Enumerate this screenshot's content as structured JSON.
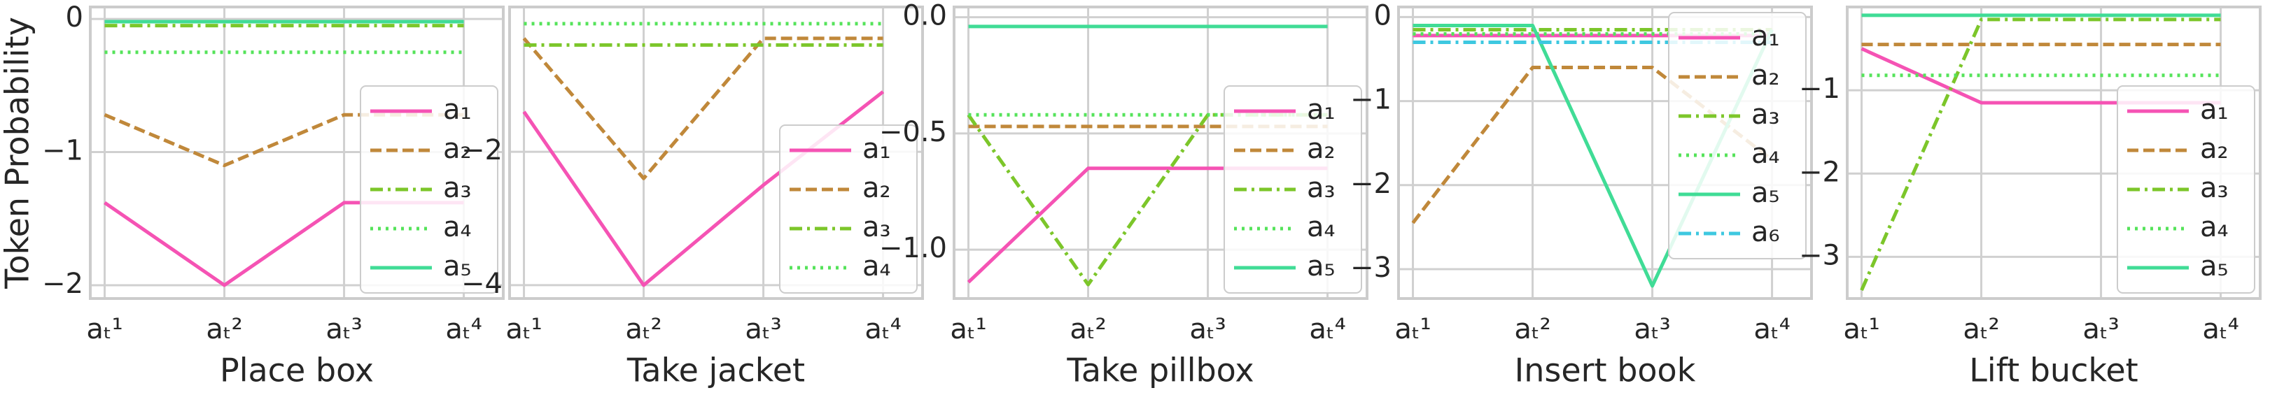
{
  "chart_data": [
    {
      "type": "line",
      "xlabel": "Place box",
      "ylabel": "Token Probability",
      "categories": [
        "aₜ¹",
        "aₜ²",
        "aₜ³",
        "aₜ⁴"
      ],
      "series": [
        {
          "name": "a₁",
          "color": "#f553b4",
          "linestyle": "solid",
          "values": [
            -1.38,
            -2.0,
            -1.38,
            -1.38
          ]
        },
        {
          "name": "a₂",
          "color": "#c0883a",
          "linestyle": "dashed",
          "values": [
            -0.72,
            -1.1,
            -0.72,
            -0.72
          ]
        },
        {
          "name": "a₃",
          "color": "#7cc62a",
          "linestyle": "dashdot",
          "values": [
            -0.05,
            -0.05,
            -0.05,
            -0.05
          ]
        },
        {
          "name": "a₄",
          "color": "#55e35a",
          "linestyle": "dotted",
          "values": [
            -0.25,
            -0.25,
            -0.25,
            -0.25
          ]
        },
        {
          "name": "a₅",
          "color": "#40dc96",
          "linestyle": "solid",
          "values": [
            -0.02,
            -0.02,
            -0.02,
            -0.02
          ]
        }
      ],
      "ylim": [
        -2.1,
        0.09
      ],
      "yticks": [
        0,
        {
          "value": -1,
          "label": "−1"
        },
        {
          "value": -2,
          "label": "−2"
        }
      ],
      "grid": true,
      "legend_loc": "lower right"
    },
    {
      "type": "line",
      "xlabel": "Take jacket",
      "categories": [
        "aₜ¹",
        "aₜ²",
        "aₜ³",
        "aₜ⁴"
      ],
      "series": [
        {
          "name": "a₁",
          "color": "#f553b4",
          "linestyle": "solid",
          "values": [
            -1.4,
            -4.0,
            -2.5,
            -1.1
          ]
        },
        {
          "name": "a₂",
          "color": "#c0883a",
          "linestyle": "dashed",
          "values": [
            -0.3,
            -2.4,
            -0.3,
            -0.3
          ]
        },
        {
          "name": "a₃",
          "color": "#7cc62a",
          "linestyle": "dashdot",
          "values": [
            -0.4,
            -0.4,
            -0.4,
            -0.4
          ]
        },
        {
          "name": "a₄",
          "color": "#55e35a",
          "linestyle": "dotted",
          "values": [
            -0.08,
            -0.08,
            -0.08,
            -0.08
          ]
        }
      ],
      "ylim": [
        -4.2,
        0.17
      ],
      "yticks": [
        {
          "value": -2,
          "label": "−2"
        },
        {
          "value": -4,
          "label": "−4"
        }
      ],
      "grid": true,
      "legend_loc": "lower right"
    },
    {
      "type": "line",
      "xlabel": "Take pillbox",
      "categories": [
        "aₜ¹",
        "aₜ²",
        "aₜ³",
        "aₜ⁴"
      ],
      "series": [
        {
          "name": "a₁",
          "color": "#f553b4",
          "linestyle": "solid",
          "values": [
            -1.14,
            -0.65,
            -0.65,
            -0.65
          ]
        },
        {
          "name": "a₂",
          "color": "#c0883a",
          "linestyle": "dashed",
          "values": [
            -0.47,
            -0.47,
            -0.47,
            -0.47
          ]
        },
        {
          "name": "a₃",
          "color": "#7cc62a",
          "linestyle": "dashdot",
          "values": [
            -0.42,
            -1.15,
            -0.42,
            -0.42
          ]
        },
        {
          "name": "a₄",
          "color": "#55e35a",
          "linestyle": "dotted",
          "values": [
            -0.42,
            -0.42,
            -0.42,
            -0.42
          ]
        },
        {
          "name": "a₅",
          "color": "#40dc96",
          "linestyle": "solid",
          "values": [
            -0.04,
            -0.04,
            -0.04,
            -0.04
          ]
        }
      ],
      "ylim": [
        -1.21,
        0.044
      ],
      "yticks": [
        {
          "value": 0,
          "label": "0.0"
        },
        {
          "value": -0.5,
          "label": "−0.5"
        },
        {
          "value": -1,
          "label": "−1.0"
        }
      ],
      "grid": true,
      "legend_loc": "lower right"
    },
    {
      "type": "line",
      "xlabel": "Insert book",
      "categories": [
        "aₜ¹",
        "aₜ²",
        "aₜ³",
        "aₜ⁴"
      ],
      "series": [
        {
          "name": "a₁",
          "color": "#f553b4",
          "linestyle": "solid",
          "values": [
            -0.22,
            -0.22,
            -0.22,
            -0.22
          ]
        },
        {
          "name": "a₂",
          "color": "#c0883a",
          "linestyle": "dashed",
          "values": [
            -2.45,
            -0.6,
            -0.6,
            -1.7
          ]
        },
        {
          "name": "a₃",
          "color": "#7cc62a",
          "linestyle": "dashdot",
          "values": [
            -0.15,
            -0.15,
            -0.15,
            -0.15
          ]
        },
        {
          "name": "a₄",
          "color": "#55e35a",
          "linestyle": "dotted",
          "values": [
            -0.2,
            -0.2,
            -0.2,
            -0.2
          ]
        },
        {
          "name": "a₅",
          "color": "#40dc96",
          "linestyle": "solid",
          "values": [
            -0.1,
            -0.1,
            -3.2,
            -0.15
          ]
        },
        {
          "name": "a₆",
          "color": "#3ec8e0",
          "linestyle": "dashdot",
          "values": [
            -0.3,
            -0.3,
            -0.3,
            -0.3
          ]
        }
      ],
      "ylim": [
        -3.35,
        0.12
      ],
      "yticks": [
        0,
        {
          "value": -1,
          "label": "−1"
        },
        {
          "value": -2,
          "label": "−2"
        },
        {
          "value": -3,
          "label": "−3"
        }
      ],
      "grid": true,
      "legend_loc": "upper right"
    },
    {
      "type": "line",
      "xlabel": "Lift bucket",
      "categories": [
        "aₜ¹",
        "aₜ²",
        "aₜ³",
        "aₜ⁴"
      ],
      "series": [
        {
          "name": "a₁",
          "color": "#f553b4",
          "linestyle": "solid",
          "values": [
            -0.5,
            -1.15,
            -1.15,
            -1.15
          ]
        },
        {
          "name": "a₂",
          "color": "#c0883a",
          "linestyle": "dashed",
          "values": [
            -0.45,
            -0.45,
            -0.45,
            -0.45
          ]
        },
        {
          "name": "a₃",
          "color": "#7cc62a",
          "linestyle": "dashdot",
          "values": [
            -3.4,
            -0.15,
            -0.15,
            -0.15
          ]
        },
        {
          "name": "a₄",
          "color": "#55e35a",
          "linestyle": "dotted",
          "values": [
            -0.82,
            -0.82,
            -0.82,
            -0.82
          ]
        },
        {
          "name": "a₅",
          "color": "#40dc96",
          "linestyle": "solid",
          "values": [
            -0.1,
            -0.1,
            -0.1,
            -0.1
          ]
        }
      ],
      "ylim": [
        -3.5,
        0
      ],
      "yticks": [
        {
          "value": -1,
          "label": "−1"
        },
        {
          "value": -2,
          "label": "−2"
        },
        {
          "value": -3,
          "label": "−3"
        }
      ],
      "grid": true,
      "legend_loc": "lower right"
    }
  ]
}
